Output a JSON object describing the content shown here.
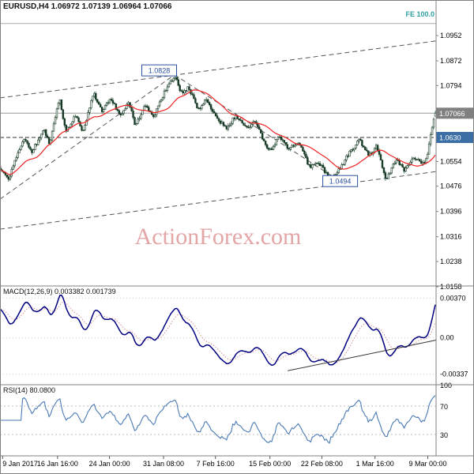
{
  "header": {
    "symbol_info": "EURUSD,H4 1.06972 1.07139 1.06964 1.07066",
    "fe_label": "FE 100.0"
  },
  "watermark": "ActionForex.com",
  "colors": {
    "background": "#ffffff",
    "candle": "#173b25",
    "candle_up_fill": "#ffffff",
    "ma_line": "#ee2222",
    "macd_line": "#000080",
    "macd_signal": "#cc8888",
    "rsi_line": "#4a7ab5",
    "trendline": "#555555",
    "annotation": "#2a4fa0",
    "current_price_box": "#808080",
    "support_box": "#3a6ea5",
    "fe_label": "#2f9e9e",
    "watermark": "#cd5c5c",
    "grid": "#cccccc",
    "separator": "#808080",
    "axis_text": "#000000"
  },
  "chart_data": {
    "type": "candlestick",
    "symbol": "EURUSD",
    "timeframe": "H4",
    "bars": 280,
    "last_candle": {
      "open": 1.06972,
      "high": 1.07139,
      "low": 1.06964,
      "close": 1.07066
    },
    "current_price": {
      "value": 1.07066,
      "label": "1.07066"
    },
    "support_line": {
      "value": 1.063,
      "label": "1.0630"
    },
    "fe_level": {
      "value": 1.099
    },
    "price_axis": [
      {
        "label": "1.0952",
        "value": 1.0952
      },
      {
        "label": "1.0872",
        "value": 1.0872
      },
      {
        "label": "1.0794",
        "value": 1.0794
      },
      {
        "label": "1.0554",
        "value": 1.0554
      },
      {
        "label": "1.0476",
        "value": 1.0476
      },
      {
        "label": "1.0396",
        "value": 1.0396
      },
      {
        "label": "1.0316",
        "value": 1.0316
      },
      {
        "label": "1.0238",
        "value": 1.0238
      },
      {
        "label": "1.0158",
        "value": 1.0158
      }
    ],
    "annotations": [
      {
        "label": "1.0828",
        "t": 0.365,
        "price": 1.0842
      },
      {
        "label": "1.0494",
        "t": 0.78,
        "price": 1.0492
      }
    ],
    "trendlines": [
      {
        "name": "rising-support-to-peak",
        "t1": 0.0,
        "p1": 1.0435,
        "t2": 0.4,
        "p2": 1.0828
      },
      {
        "name": "decline-from-peak",
        "t1": 0.4,
        "p1": 1.0828,
        "t2": 0.775,
        "p2": 1.0496
      },
      {
        "name": "channel-upper",
        "t1": 0.0,
        "p1": 1.0755,
        "t2": 1.0,
        "p2": 1.0935
      },
      {
        "name": "channel-lower",
        "t1": 0.0,
        "p1": 1.034,
        "t2": 1.0,
        "p2": 1.0522
      }
    ],
    "price_path": [
      [
        0.0,
        1.0532
      ],
      [
        0.018,
        1.0498
      ],
      [
        0.04,
        1.0585
      ],
      [
        0.054,
        1.0622
      ],
      [
        0.072,
        1.0586
      ],
      [
        0.099,
        1.0655
      ],
      [
        0.112,
        1.061
      ],
      [
        0.135,
        1.0752
      ],
      [
        0.15,
        1.065
      ],
      [
        0.171,
        1.07
      ],
      [
        0.189,
        1.0648
      ],
      [
        0.213,
        1.0772
      ],
      [
        0.234,
        1.071
      ],
      [
        0.252,
        1.0758
      ],
      [
        0.274,
        1.0698
      ],
      [
        0.294,
        1.0742
      ],
      [
        0.31,
        1.0668
      ],
      [
        0.333,
        1.0732
      ],
      [
        0.351,
        1.0692
      ],
      [
        0.378,
        1.0778
      ],
      [
        0.4,
        1.0825
      ],
      [
        0.418,
        1.0762
      ],
      [
        0.432,
        1.0792
      ],
      [
        0.454,
        1.0715
      ],
      [
        0.472,
        1.0748
      ],
      [
        0.495,
        1.0692
      ],
      [
        0.519,
        1.0658
      ],
      [
        0.541,
        1.07
      ],
      [
        0.568,
        1.0656
      ],
      [
        0.586,
        1.0684
      ],
      [
        0.609,
        1.0606
      ],
      [
        0.622,
        1.0592
      ],
      [
        0.64,
        1.063
      ],
      [
        0.663,
        1.0594
      ],
      [
        0.685,
        1.0616
      ],
      [
        0.712,
        1.0532
      ],
      [
        0.73,
        1.0556
      ],
      [
        0.757,
        1.0497
      ],
      [
        0.778,
        1.0528
      ],
      [
        0.802,
        1.058
      ],
      [
        0.825,
        1.0624
      ],
      [
        0.847,
        1.0572
      ],
      [
        0.865,
        1.0604
      ],
      [
        0.886,
        1.0497
      ],
      [
        0.91,
        1.056
      ],
      [
        0.928,
        1.0527
      ],
      [
        0.951,
        1.0566
      ],
      [
        0.969,
        1.0547
      ],
      [
        0.98,
        1.056
      ],
      [
        0.99,
        1.064
      ],
      [
        1.0,
        1.0707
      ]
    ],
    "ma": {
      "period": 24
    },
    "time_axis": [
      {
        "label": "9 Jan 2017",
        "t": 0.006
      },
      {
        "label": "16 Jan 16:00",
        "t": 0.132
      },
      {
        "label": "24 Jan 00:00",
        "t": 0.251
      },
      {
        "label": "31 Jan 08:00",
        "t": 0.375
      },
      {
        "label": "7 Feb 16:00",
        "t": 0.494
      },
      {
        "label": "15 Feb 00:00",
        "t": 0.619
      },
      {
        "label": "22 Feb 08:00",
        "t": 0.738
      },
      {
        "label": "1 Mar 16:00",
        "t": 0.86
      },
      {
        "label": "9 Mar 00:00",
        "t": 0.981
      }
    ],
    "macd": {
      "header": "MACD(12,26,9) 0.003382 0.001739",
      "fast": 12,
      "slow": 26,
      "signal_period": 9,
      "current_value": 0.003382,
      "current_signal": 0.001739,
      "axis_labels": [
        {
          "label": "0.00370",
          "value": 0.0037
        },
        {
          "label": "0.00",
          "value": 0
        },
        {
          "label": "-0.00337",
          "value": -0.00337
        }
      ],
      "trendline": {
        "t1": 0.66,
        "v1": -0.00305,
        "t2": 1.0,
        "v2": -0.0002
      }
    },
    "rsi": {
      "header": "RSI(14) 80.0800",
      "period": 14,
      "current_value": 80.08,
      "axis_labels": [
        {
          "label": "100",
          "value": 100
        },
        {
          "label": "70",
          "value": 70
        },
        {
          "label": "30",
          "value": 30
        }
      ],
      "levels": [
        70,
        30
      ]
    }
  }
}
